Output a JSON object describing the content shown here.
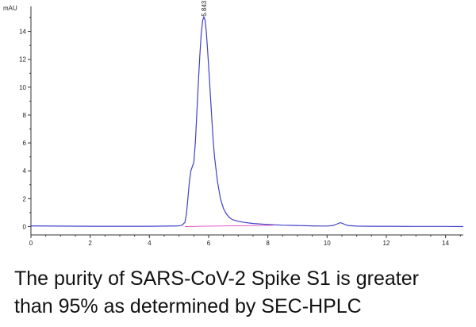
{
  "chart_data": {
    "type": "line",
    "y_unit": "mAU",
    "xlim": [
      0,
      14.6
    ],
    "ylim": [
      -0.6,
      15.8
    ],
    "x_ticks": [
      0,
      2,
      4,
      6,
      8,
      10,
      12,
      14
    ],
    "y_ticks": [
      0,
      2,
      4,
      6,
      8,
      10,
      12,
      14
    ],
    "grid": false,
    "peak_annotation": {
      "x": 5.843,
      "y": 14.9,
      "label": "5.843"
    },
    "series": [
      {
        "color": "#4040c8",
        "x": [
          0,
          1,
          2,
          3,
          4,
          4.5,
          5.0,
          5.1,
          5.2,
          5.25,
          5.3,
          5.35,
          5.4,
          5.45,
          5.5,
          5.55,
          5.6,
          5.65,
          5.7,
          5.75,
          5.8,
          5.84,
          5.88,
          5.92,
          5.96,
          6.0,
          6.05,
          6.1,
          6.15,
          6.2,
          6.3,
          6.4,
          6.5,
          6.6,
          6.7,
          6.8,
          7.0,
          7.2,
          7.5,
          8.0,
          8.5,
          9.0,
          9.5,
          10.0,
          10.2,
          10.35,
          10.45,
          10.55,
          10.7,
          11.0,
          11.5,
          12.0,
          13.0,
          14.0,
          14.6
        ],
        "values": [
          0.05,
          0.03,
          0.02,
          0.02,
          0.02,
          0.03,
          0.05,
          0.1,
          0.3,
          0.9,
          2.0,
          3.2,
          4.0,
          4.3,
          4.6,
          6.0,
          8.0,
          10.2,
          12.2,
          13.8,
          14.8,
          15.05,
          14.8,
          14.0,
          12.8,
          11.5,
          9.8,
          8.0,
          6.3,
          5.0,
          3.2,
          2.0,
          1.3,
          0.9,
          0.65,
          0.5,
          0.38,
          0.3,
          0.22,
          0.15,
          0.1,
          0.08,
          0.05,
          0.04,
          0.08,
          0.2,
          0.28,
          0.2,
          0.08,
          0.03,
          0.02,
          0.02,
          0.01,
          0.01,
          0.0
        ]
      },
      {
        "color": "#e040c0",
        "x": [
          5.2,
          6.0,
          7.0,
          8.0,
          8.2
        ],
        "values": [
          0.0,
          0.03,
          0.06,
          0.09,
          0.1
        ]
      }
    ]
  },
  "caption": {
    "line1": "The purity of SARS-CoV-2 Spike S1 is greater",
    "line2": "than 95% as determined by SEC-HPLC"
  }
}
